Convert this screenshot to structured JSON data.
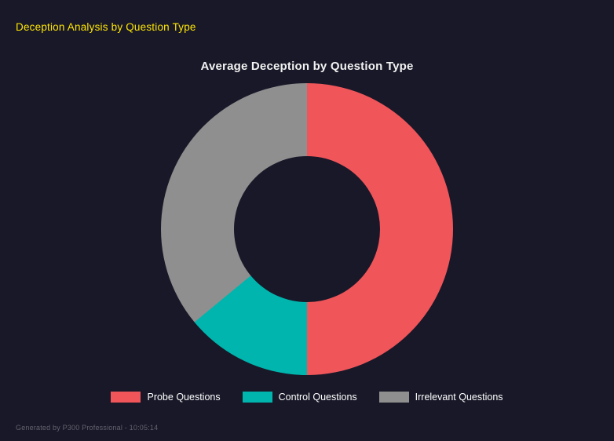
{
  "page": {
    "header": "Deception Analysis by Question Type",
    "footer": "Generated by P300 Professional - 10:05:14"
  },
  "chart_data": {
    "type": "pie",
    "subtype": "doughnut",
    "title": "Average Deception by Question Type",
    "labels": [
      "Probe Questions",
      "Control Questions",
      "Irrelevant Questions"
    ],
    "values": [
      50,
      14,
      36
    ],
    "unit": "percent",
    "colors": [
      "#f0555a",
      "#00b5ad",
      "#8f8f8f"
    ],
    "cutout_percent": 50,
    "start_angle_deg": 0,
    "direction": "clockwise",
    "legend_position": "bottom",
    "background": "#181828"
  }
}
